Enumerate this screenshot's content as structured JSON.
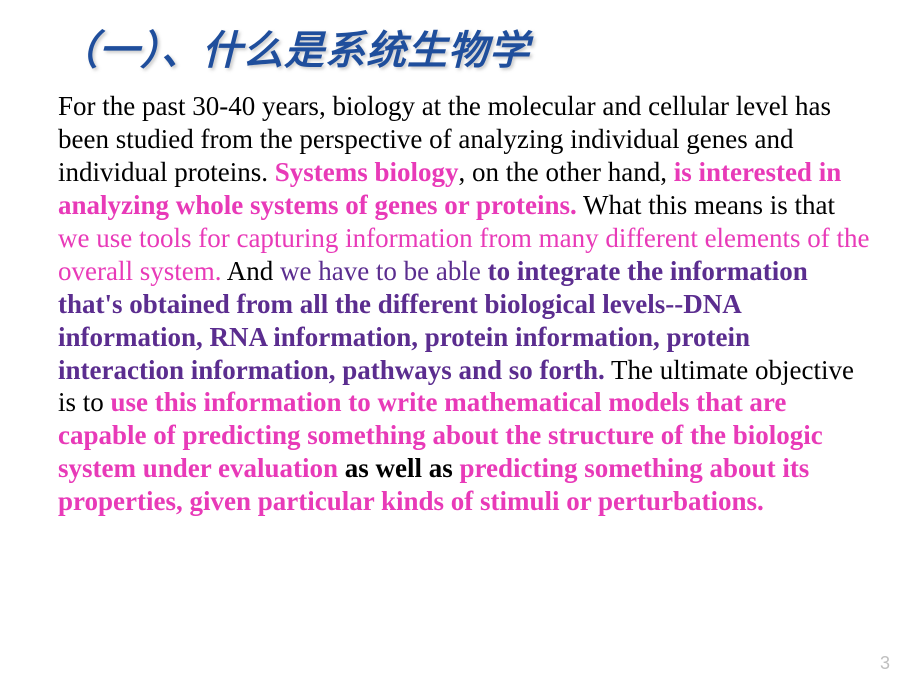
{
  "slide": {
    "title": "（一）、什么是系统生物学",
    "title_color": "#1f4e9c",
    "title_fontsize": 40,
    "body_fontsize": 27,
    "colors": {
      "black": "#000000",
      "magenta": "#e83ab8",
      "purple": "#5b2d8f",
      "pagenum": "#bfbfbf",
      "background": "#ffffff"
    },
    "page_number": "3",
    "segments": [
      {
        "text": " For the past 30-40 years, biology at the molecular and cellular level has been studied from the perspective of analyzing individual genes and individual proteins. ",
        "bold": false,
        "color": "black"
      },
      {
        "text": "Systems biology",
        "bold": true,
        "color": "magenta"
      },
      {
        "text": ", on the other hand, ",
        "bold": false,
        "color": "black"
      },
      {
        "text": "is interested in analyzing whole systems of genes or proteins.",
        "bold": true,
        "color": "magenta"
      },
      {
        "text": " What this means is that ",
        "bold": false,
        "color": "black"
      },
      {
        "text": "we use tools for capturing information from many different elements of the overall system.",
        "bold": false,
        "color": "magenta"
      },
      {
        "text": " And ",
        "bold": false,
        "color": "black"
      },
      {
        "text": "we have to be able ",
        "bold": false,
        "color": "purple"
      },
      {
        "text": "to integrate the information that's obtained from all the different biological levels--DNA information, RNA information, protein information, protein interaction information, pathways and so forth.",
        "bold": true,
        "color": "purple"
      },
      {
        "text": " The ultimate objective is to ",
        "bold": false,
        "color": "black"
      },
      {
        "text": "use this information to write mathematical models that are capable of predicting something about the structure of the biologic system under evaluation",
        "bold": true,
        "color": "magenta"
      },
      {
        "text": " as well as ",
        "bold": true,
        "color": "black"
      },
      {
        "text": "predicting something about its properties, given particular kinds of stimuli or perturbations.",
        "bold": true,
        "color": "magenta"
      }
    ]
  }
}
